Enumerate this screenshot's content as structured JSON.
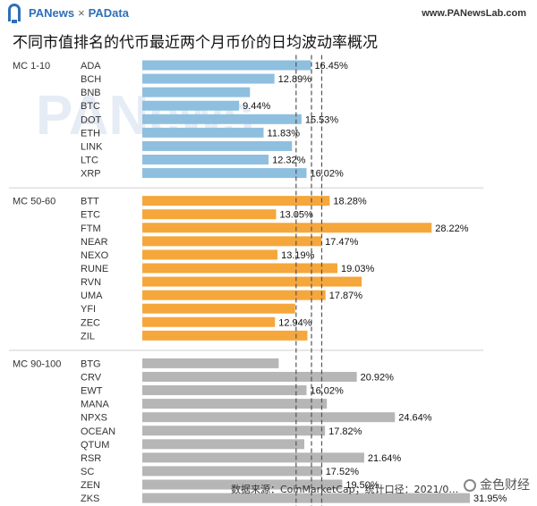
{
  "header": {
    "brand_left": "PANews",
    "brand_sep": "×",
    "brand_right": "PAData",
    "site": "www.PANewsLab.com"
  },
  "footer": {
    "source": "数据来源：CoinMarketCap；统计口径：2021/0…",
    "logo_text": "金色财经"
  },
  "watermark": "PANews",
  "chart_data": {
    "type": "bar",
    "orientation": "horizontal",
    "title": "不同市值排名的代币最近两个月币价的日均波动率概况",
    "xlim": [
      0,
      34
    ],
    "reference_lines": [
      15,
      16.5,
      17.5
    ],
    "groups": [
      {
        "name": "MC 1-10",
        "color": "#8fbfdf",
        "items": [
          {
            "label": "ADA",
            "value": 16.45,
            "value_label": "16.45%"
          },
          {
            "label": "BCH",
            "value": 12.89,
            "value_label": "12.89%"
          },
          {
            "label": "BNB",
            "value": 10.5,
            "value_label": ""
          },
          {
            "label": "BTC",
            "value": 9.44,
            "value_label": "9.44%"
          },
          {
            "label": "DOT",
            "value": 15.53,
            "value_label": "15.53%"
          },
          {
            "label": "ETH",
            "value": 11.83,
            "value_label": "11.83%"
          },
          {
            "label": "LINK",
            "value": 14.6,
            "value_label": ""
          },
          {
            "label": "LTC",
            "value": 12.32,
            "value_label": "12.32%"
          },
          {
            "label": "XRP",
            "value": 16.02,
            "value_label": "16.02%"
          }
        ]
      },
      {
        "name": "MC 50-60",
        "color": "#f5a73c",
        "items": [
          {
            "label": "BTT",
            "value": 18.28,
            "value_label": "18.28%"
          },
          {
            "label": "ETC",
            "value": 13.05,
            "value_label": "13.05%"
          },
          {
            "label": "FTM",
            "value": 28.22,
            "value_label": "28.22%"
          },
          {
            "label": "NEAR",
            "value": 17.47,
            "value_label": "17.47%"
          },
          {
            "label": "NEXO",
            "value": 13.19,
            "value_label": "13.19%"
          },
          {
            "label": "RUNE",
            "value": 19.03,
            "value_label": "19.03%"
          },
          {
            "label": "RVN",
            "value": 21.4,
            "value_label": ""
          },
          {
            "label": "UMA",
            "value": 17.87,
            "value_label": "17.87%"
          },
          {
            "label": "YFI",
            "value": 14.9,
            "value_label": ""
          },
          {
            "label": "ZEC",
            "value": 12.94,
            "value_label": "12.94%"
          },
          {
            "label": "ZIL",
            "value": 16.1,
            "value_label": ""
          }
        ]
      },
      {
        "name": "MC 90-100",
        "color": "#b6b6b6",
        "items": [
          {
            "label": "BTG",
            "value": 13.3,
            "value_label": ""
          },
          {
            "label": "CRV",
            "value": 20.92,
            "value_label": "20.92%"
          },
          {
            "label": "EWT",
            "value": 16.02,
            "value_label": "16.02%"
          },
          {
            "label": "MANA",
            "value": 18.0,
            "value_label": ""
          },
          {
            "label": "NPXS",
            "value": 24.64,
            "value_label": "24.64%"
          },
          {
            "label": "OCEAN",
            "value": 17.82,
            "value_label": "17.82%"
          },
          {
            "label": "QTUM",
            "value": 15.8,
            "value_label": ""
          },
          {
            "label": "RSR",
            "value": 21.64,
            "value_label": "21.64%"
          },
          {
            "label": "SC",
            "value": 17.52,
            "value_label": "17.52%"
          },
          {
            "label": "ZEN",
            "value": 19.5,
            "value_label": "19.50%"
          },
          {
            "label": "ZKS",
            "value": 31.95,
            "value_label": "31.95%"
          }
        ]
      }
    ]
  }
}
